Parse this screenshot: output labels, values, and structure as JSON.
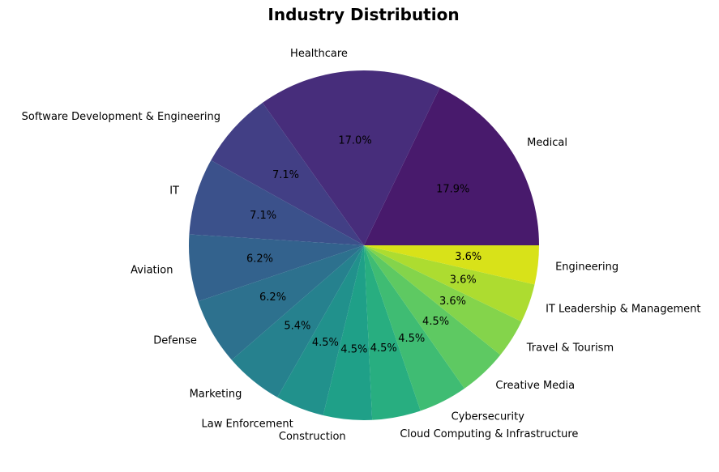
{
  "chart_data": {
    "type": "pie",
    "title": "Industry Distribution",
    "start_angle_deg": 0,
    "direction": "counterclockwise",
    "slices": [
      {
        "label": "Medical",
        "value": 17.9,
        "pct_label": "17.9%",
        "color": "#481a6c"
      },
      {
        "label": "Healthcare",
        "value": 17.0,
        "pct_label": "17.0%",
        "color": "#472d7b"
      },
      {
        "label": "Software Development & Engineering",
        "value": 7.1,
        "pct_label": "7.1%",
        "color": "#423f85"
      },
      {
        "label": "IT",
        "value": 7.1,
        "pct_label": "7.1%",
        "color": "#3b518b"
      },
      {
        "label": "Aviation",
        "value": 6.2,
        "pct_label": "6.2%",
        "color": "#33628d"
      },
      {
        "label": "Defense",
        "value": 6.2,
        "pct_label": "6.2%",
        "color": "#2d718e"
      },
      {
        "label": "Marketing",
        "value": 5.4,
        "pct_label": "5.4%",
        "color": "#26818e"
      },
      {
        "label": "Law Enforcement",
        "value": 4.5,
        "pct_label": "4.5%",
        "color": "#21918c"
      },
      {
        "label": "Construction",
        "value": 4.5,
        "pct_label": "4.5%",
        "color": "#1fa088"
      },
      {
        "label": "Cloud Computing & Infrastructure",
        "value": 4.5,
        "pct_label": "4.5%",
        "color": "#28ae80"
      },
      {
        "label": "Cybersecurity",
        "value": 4.5,
        "pct_label": "4.5%",
        "color": "#3fbc73"
      },
      {
        "label": "Creative Media",
        "value": 4.5,
        "pct_label": "4.5%",
        "color": "#5ec962"
      },
      {
        "label": "Travel & Tourism",
        "value": 3.6,
        "pct_label": "3.6%",
        "color": "#84d44b"
      },
      {
        "label": "IT Leadership & Management",
        "value": 3.6,
        "pct_label": "3.6%",
        "color": "#addc30"
      },
      {
        "label": "Engineering",
        "value": 3.6,
        "pct_label": "3.6%",
        "color": "#d8e219"
      }
    ]
  }
}
